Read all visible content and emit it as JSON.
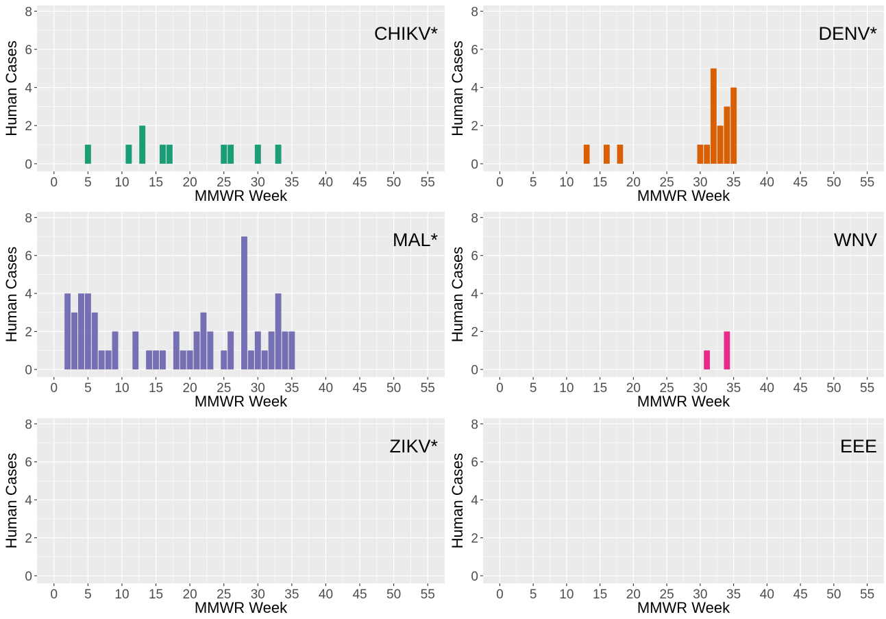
{
  "chart_data": [
    {
      "type": "bar",
      "label": "CHIKV*",
      "xlabel": "MMWR Week",
      "ylabel": "Human Cases",
      "xlim": [
        -2.5,
        57.5
      ],
      "ylim": [
        -0.4,
        8.3
      ],
      "xticks": [
        0,
        5,
        10,
        15,
        20,
        25,
        30,
        35,
        40,
        45,
        50,
        55
      ],
      "yticks": [
        0,
        2,
        4,
        6,
        8
      ],
      "grid": true,
      "color": "#1b9e77",
      "x": [
        5,
        11,
        13,
        16,
        17,
        25,
        26,
        30,
        33
      ],
      "values": [
        1,
        1,
        2,
        1,
        1,
        1,
        1,
        1,
        1
      ]
    },
    {
      "type": "bar",
      "label": "DENV*",
      "xlabel": "MMWR Week",
      "ylabel": "Human Cases",
      "xlim": [
        -2.5,
        57.5
      ],
      "ylim": [
        -0.4,
        8.3
      ],
      "xticks": [
        0,
        5,
        10,
        15,
        20,
        25,
        30,
        35,
        40,
        45,
        50,
        55
      ],
      "yticks": [
        0,
        2,
        4,
        6,
        8
      ],
      "grid": true,
      "color": "#d95f02",
      "x": [
        13,
        16,
        18,
        30,
        31,
        32,
        33,
        34,
        35
      ],
      "values": [
        1,
        1,
        1,
        1,
        1,
        5,
        2,
        3,
        4
      ]
    },
    {
      "type": "bar",
      "label": "MAL*",
      "xlabel": "MMWR Week",
      "ylabel": "Human Cases",
      "xlim": [
        -2.5,
        57.5
      ],
      "ylim": [
        -0.4,
        8.3
      ],
      "xticks": [
        0,
        5,
        10,
        15,
        20,
        25,
        30,
        35,
        40,
        45,
        50,
        55
      ],
      "yticks": [
        0,
        2,
        4,
        6,
        8
      ],
      "grid": true,
      "color": "#7570b3",
      "x": [
        2,
        3,
        4,
        5,
        6,
        7,
        8,
        9,
        12,
        14,
        15,
        16,
        18,
        19,
        20,
        21,
        22,
        23,
        25,
        26,
        28,
        29,
        30,
        31,
        32,
        33,
        34,
        35
      ],
      "values": [
        4,
        3,
        4,
        4,
        3,
        1,
        1,
        2,
        2,
        1,
        1,
        1,
        2,
        1,
        1,
        2,
        3,
        2,
        1,
        2,
        7,
        1,
        2,
        1,
        2,
        4,
        2,
        2
      ]
    },
    {
      "type": "bar",
      "label": "WNV",
      "xlabel": "MMWR Week",
      "ylabel": "Human Cases",
      "xlim": [
        -2.5,
        57.5
      ],
      "ylim": [
        -0.4,
        8.3
      ],
      "xticks": [
        0,
        5,
        10,
        15,
        20,
        25,
        30,
        35,
        40,
        45,
        50,
        55
      ],
      "yticks": [
        0,
        2,
        4,
        6,
        8
      ],
      "grid": true,
      "color": "#e7298a",
      "x": [
        31,
        34
      ],
      "values": [
        1,
        2
      ]
    },
    {
      "type": "bar",
      "label": "ZIKV*",
      "xlabel": "MMWR Week",
      "ylabel": "Human Cases",
      "xlim": [
        -2.5,
        57.5
      ],
      "ylim": [
        -0.4,
        8.3
      ],
      "xticks": [
        0,
        5,
        10,
        15,
        20,
        25,
        30,
        35,
        40,
        45,
        50,
        55
      ],
      "yticks": [
        0,
        2,
        4,
        6,
        8
      ],
      "grid": true,
      "color": "#66a61e",
      "x": [],
      "values": []
    },
    {
      "type": "bar",
      "label": "EEE",
      "xlabel": "MMWR Week",
      "ylabel": "Human Cases",
      "xlim": [
        -2.5,
        57.5
      ],
      "ylim": [
        -0.4,
        8.3
      ],
      "xticks": [
        0,
        5,
        10,
        15,
        20,
        25,
        30,
        35,
        40,
        45,
        50,
        55
      ],
      "yticks": [
        0,
        2,
        4,
        6,
        8
      ],
      "grid": true,
      "color": "#e6ab02",
      "x": [],
      "values": []
    }
  ]
}
